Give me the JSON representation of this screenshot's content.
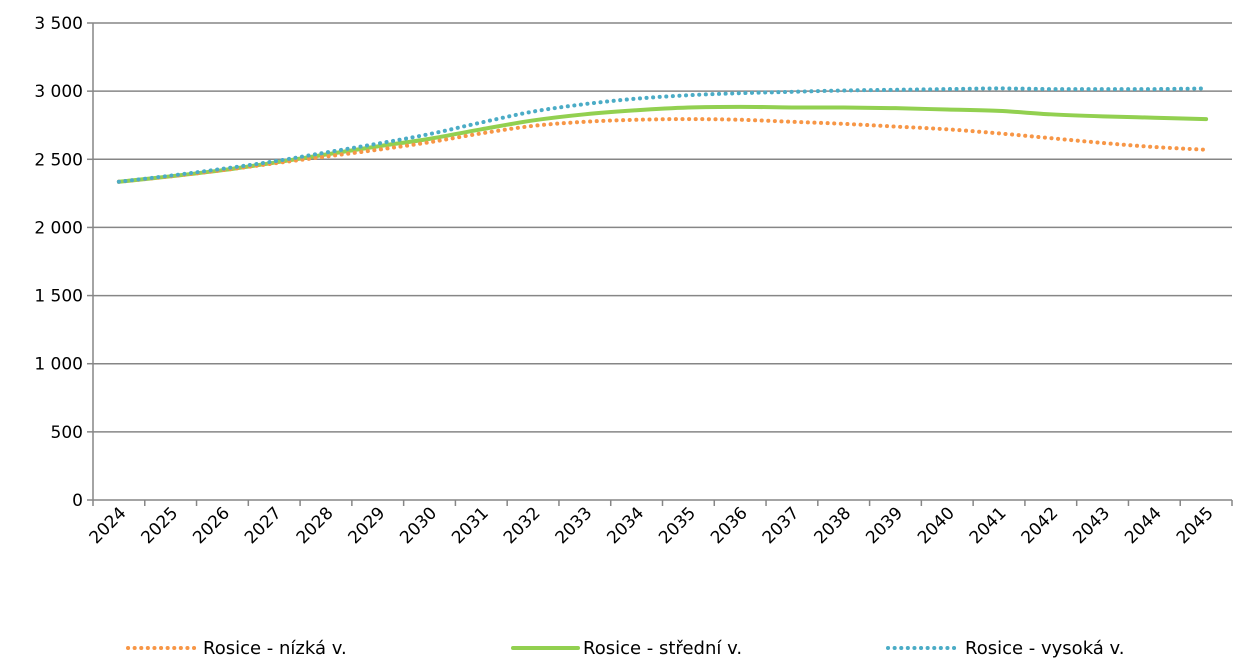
{
  "chart_data": {
    "type": "line",
    "categories": [
      "2024",
      "2025",
      "2026",
      "2027",
      "2028",
      "2029",
      "2030",
      "2031",
      "2032",
      "2033",
      "2034",
      "2035",
      "2036",
      "2037",
      "2038",
      "2039",
      "2040",
      "2041",
      "2042",
      "2043",
      "2044",
      "2045"
    ],
    "ylim": [
      0,
      3500
    ],
    "yticks": [
      0,
      500,
      1000,
      1500,
      2000,
      2500,
      3000,
      3500
    ],
    "ytick_labels": [
      "0",
      "500",
      "1 000",
      "1 500",
      "2 000",
      "2 500",
      "3 000",
      "3 500"
    ],
    "grid": "horizontal",
    "legend_position": "bottom",
    "series": [
      {
        "name": "Rosice - nízká v.",
        "color": "#F79646",
        "style": "dotted",
        "values": [
          2335,
          2375,
          2420,
          2470,
          2520,
          2570,
          2625,
          2690,
          2745,
          2775,
          2790,
          2795,
          2790,
          2775,
          2760,
          2740,
          2720,
          2690,
          2655,
          2620,
          2590,
          2570
        ]
      },
      {
        "name": "Rosice - střední v.",
        "color": "#92D050",
        "style": "solid",
        "values": [
          2335,
          2375,
          2420,
          2475,
          2535,
          2595,
          2650,
          2720,
          2785,
          2830,
          2860,
          2880,
          2885,
          2880,
          2880,
          2875,
          2865,
          2855,
          2830,
          2815,
          2805,
          2795
        ]
      },
      {
        "name": "Rosice - vysoká v.",
        "color": "#4BACC6",
        "style": "dotted",
        "values": [
          2335,
          2380,
          2430,
          2485,
          2550,
          2615,
          2685,
          2770,
          2850,
          2905,
          2945,
          2970,
          2985,
          2995,
          3005,
          3010,
          3015,
          3020,
          3015,
          3015,
          3015,
          3020
        ]
      }
    ]
  }
}
